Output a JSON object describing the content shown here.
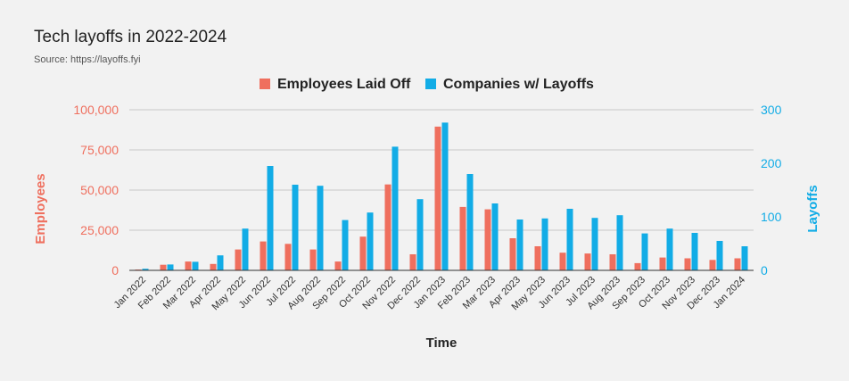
{
  "chart_data": {
    "type": "bar",
    "title": "Tech layoffs in 2022-2024",
    "subtitle": "Source: https://layoffs.fyi",
    "xlabel": "Time",
    "ylabel_left": "Employees",
    "ylabel_right": "Layoffs",
    "ylim_left": [
      0,
      100000
    ],
    "ylim_right": [
      0,
      300
    ],
    "yticks_left": [
      "0",
      "25,000",
      "50,000",
      "75,000",
      "100,000"
    ],
    "yticks_right": [
      "0",
      "100",
      "200",
      "300"
    ],
    "grid": true,
    "legend_position": "top-center",
    "categories": [
      "Jan 2022",
      "Feb 2022",
      "Mar 2022",
      "Apr 2022",
      "May 2022",
      "Jun 2022",
      "Jul 2022",
      "Aug 2022",
      "Sep 2022",
      "Oct 2022",
      "Nov 2022",
      "Dec 2022",
      "Jan 2023",
      "Feb 2023",
      "Mar 2023",
      "Apr 2023",
      "May 2023",
      "Jun 2023",
      "Jul 2023",
      "Aug 2023",
      "Sep 2023",
      "Oct 2023",
      "Nov 2023",
      "Dec 2023",
      "Jan 2024"
    ],
    "series": [
      {
        "name": "Employees Laid Off",
        "axis": "left",
        "color": "#ef6f5e",
        "values": [
          500,
          3500,
          5500,
          4000,
          13000,
          18000,
          16500,
          13000,
          5500,
          21000,
          53500,
          10000,
          89500,
          39500,
          38000,
          20000,
          15000,
          11000,
          10500,
          10000,
          4500,
          8000,
          7500,
          6500,
          7500
        ]
      },
      {
        "name": "Companies w/ Layoffs",
        "axis": "right",
        "color": "#12ace6",
        "values": [
          3,
          11,
          16,
          28,
          78,
          195,
          160,
          158,
          94,
          108,
          231,
          133,
          276,
          180,
          125,
          95,
          97,
          115,
          98,
          103,
          69,
          78,
          70,
          55,
          45
        ]
      }
    ]
  }
}
